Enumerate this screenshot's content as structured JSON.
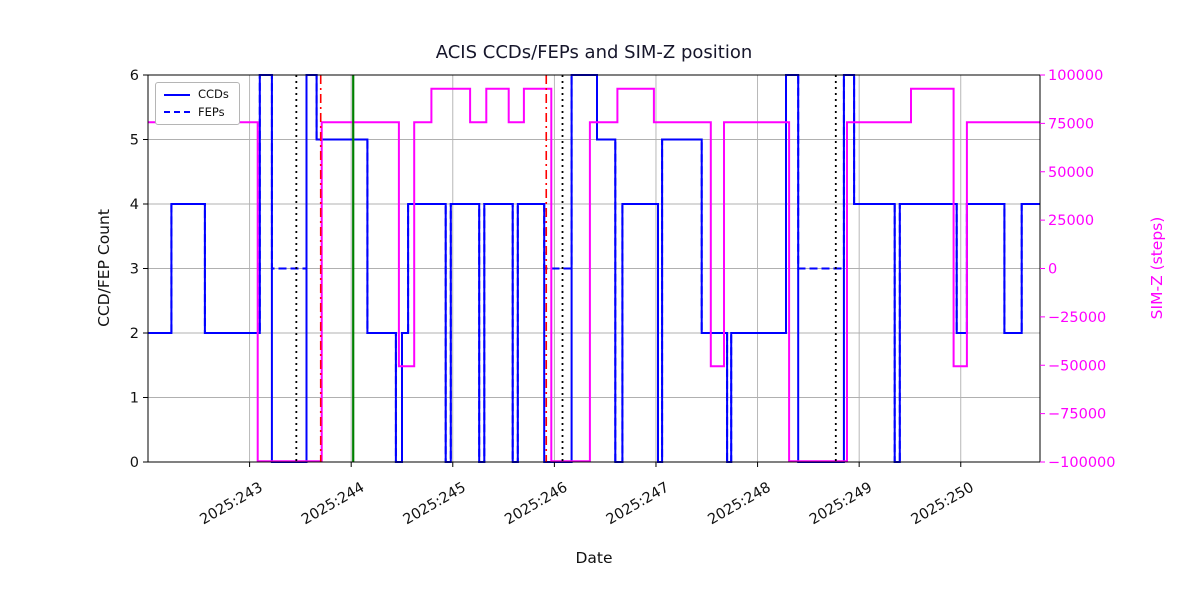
{
  "chart_data": {
    "type": "line",
    "subtype": "step",
    "title": "ACIS CCDs/FEPs and SIM-Z position",
    "xlabel": "Date",
    "ylabel_left": "CCD/FEP Count",
    "ylabel_right": "SIM-Z (steps)",
    "xlim": [
      242.0,
      250.78
    ],
    "ylim_left": [
      0,
      6
    ],
    "ylim_right": [
      -100000,
      100000
    ],
    "grid": true,
    "x_ticks": [
      243,
      244,
      245,
      246,
      247,
      248,
      249,
      250
    ],
    "x_tick_labels": [
      "2025:243",
      "2025:244",
      "2025:245",
      "2025:246",
      "2025:247",
      "2025:248",
      "2025:249",
      "2025:250"
    ],
    "y_ticks_left": [
      0,
      1,
      2,
      3,
      4,
      5,
      6
    ],
    "y_tick_labels_left": [
      "0",
      "1",
      "2",
      "3",
      "4",
      "5",
      "6"
    ],
    "y_ticks_right": [
      -100000,
      -75000,
      -50000,
      -25000,
      0,
      25000,
      50000,
      75000,
      100000
    ],
    "y_tick_labels_right": [
      "−100000",
      "−75000",
      "−50000",
      "−25000",
      "0",
      "25000",
      "50000",
      "75000",
      "100000"
    ],
    "colors": {
      "ccds": "#0000ff",
      "feps": "#0000ff",
      "simz": "#ff00ff",
      "grid": "#b0b0b0",
      "axis": "#000000",
      "text": "#111111",
      "vline_dotted": "#000000",
      "vline_dashed": "#ff0000",
      "vline_solid": "#008000"
    },
    "legend": {
      "position": "upper-left",
      "entries": [
        {
          "label": "CCDs",
          "style": "solid",
          "color": "#0000ff"
        },
        {
          "label": "FEPs",
          "style": "dashed",
          "color": "#0000ff"
        }
      ]
    },
    "series": [
      {
        "name": "CCDs",
        "axis": "left",
        "color": "#0000ff",
        "style": "solid",
        "steps": [
          [
            242.0,
            2
          ],
          [
            242.23,
            4
          ],
          [
            242.56,
            2
          ],
          [
            243.1,
            6
          ],
          [
            243.22,
            0
          ],
          [
            243.56,
            6
          ],
          [
            243.66,
            5
          ],
          [
            244.16,
            2
          ],
          [
            244.44,
            0
          ],
          [
            244.5,
            2
          ],
          [
            244.56,
            4
          ],
          [
            244.93,
            0
          ],
          [
            244.98,
            4
          ],
          [
            245.26,
            0
          ],
          [
            245.31,
            4
          ],
          [
            245.59,
            0
          ],
          [
            245.64,
            4
          ],
          [
            245.9,
            0
          ],
          [
            246.17,
            6
          ],
          [
            246.42,
            5
          ],
          [
            246.6,
            0
          ],
          [
            246.67,
            4
          ],
          [
            247.02,
            0
          ],
          [
            247.06,
            5
          ],
          [
            247.45,
            2
          ],
          [
            247.7,
            0
          ],
          [
            247.74,
            2
          ],
          [
            248.28,
            6
          ],
          [
            248.4,
            0
          ],
          [
            248.85,
            6
          ],
          [
            248.95,
            4
          ],
          [
            249.35,
            0
          ],
          [
            249.4,
            4
          ],
          [
            249.96,
            2
          ],
          [
            250.06,
            4
          ],
          [
            250.43,
            2
          ],
          [
            250.6,
            4
          ]
        ]
      },
      {
        "name": "FEPs",
        "axis": "left",
        "color": "#0000ff",
        "style": "dashed",
        "steps": [
          [
            242.0,
            2
          ],
          [
            242.23,
            4
          ],
          [
            242.56,
            2
          ],
          [
            243.1,
            6
          ],
          [
            243.22,
            3
          ],
          [
            243.56,
            6
          ],
          [
            243.66,
            5
          ],
          [
            244.16,
            2
          ],
          [
            244.44,
            0
          ],
          [
            244.5,
            2
          ],
          [
            244.56,
            4
          ],
          [
            244.93,
            0
          ],
          [
            244.98,
            4
          ],
          [
            245.26,
            0
          ],
          [
            245.31,
            4
          ],
          [
            245.59,
            0
          ],
          [
            245.64,
            4
          ],
          [
            245.9,
            3
          ],
          [
            246.17,
            6
          ],
          [
            246.42,
            5
          ],
          [
            246.6,
            0
          ],
          [
            246.67,
            4
          ],
          [
            247.02,
            0
          ],
          [
            247.06,
            5
          ],
          [
            247.45,
            2
          ],
          [
            247.7,
            0
          ],
          [
            247.74,
            2
          ],
          [
            248.28,
            6
          ],
          [
            248.4,
            3
          ],
          [
            248.85,
            6
          ],
          [
            248.95,
            4
          ],
          [
            249.35,
            0
          ],
          [
            249.4,
            4
          ],
          [
            249.96,
            2
          ],
          [
            250.06,
            4
          ],
          [
            250.43,
            2
          ],
          [
            250.6,
            4
          ]
        ]
      },
      {
        "name": "SIM-Z",
        "axis": "right",
        "color": "#ff00ff",
        "style": "solid",
        "steps": [
          [
            242.0,
            75624
          ],
          [
            242.2,
            92904
          ],
          [
            242.5,
            75624
          ],
          [
            243.08,
            -99612
          ],
          [
            243.71,
            75624
          ],
          [
            244.47,
            -50505
          ],
          [
            244.62,
            75624
          ],
          [
            244.79,
            92904
          ],
          [
            245.17,
            75624
          ],
          [
            245.33,
            92904
          ],
          [
            245.55,
            75624
          ],
          [
            245.7,
            92904
          ],
          [
            245.97,
            -99612
          ],
          [
            246.35,
            75624
          ],
          [
            246.62,
            92904
          ],
          [
            246.98,
            75624
          ],
          [
            247.54,
            -50505
          ],
          [
            247.67,
            75624
          ],
          [
            248.31,
            -99612
          ],
          [
            248.88,
            75624
          ],
          [
            249.51,
            92904
          ],
          [
            249.93,
            -50505
          ],
          [
            250.06,
            75624
          ]
        ]
      }
    ],
    "vlines": [
      {
        "x": 243.46,
        "color": "#000000",
        "style": "dotted"
      },
      {
        "x": 243.7,
        "color": "#ff0000",
        "style": "dashed"
      },
      {
        "x": 244.02,
        "color": "#008000",
        "style": "solid"
      },
      {
        "x": 245.92,
        "color": "#ff0000",
        "style": "dashed"
      },
      {
        "x": 246.08,
        "color": "#000000",
        "style": "dotted"
      },
      {
        "x": 248.77,
        "color": "#000000",
        "style": "dotted"
      }
    ]
  }
}
